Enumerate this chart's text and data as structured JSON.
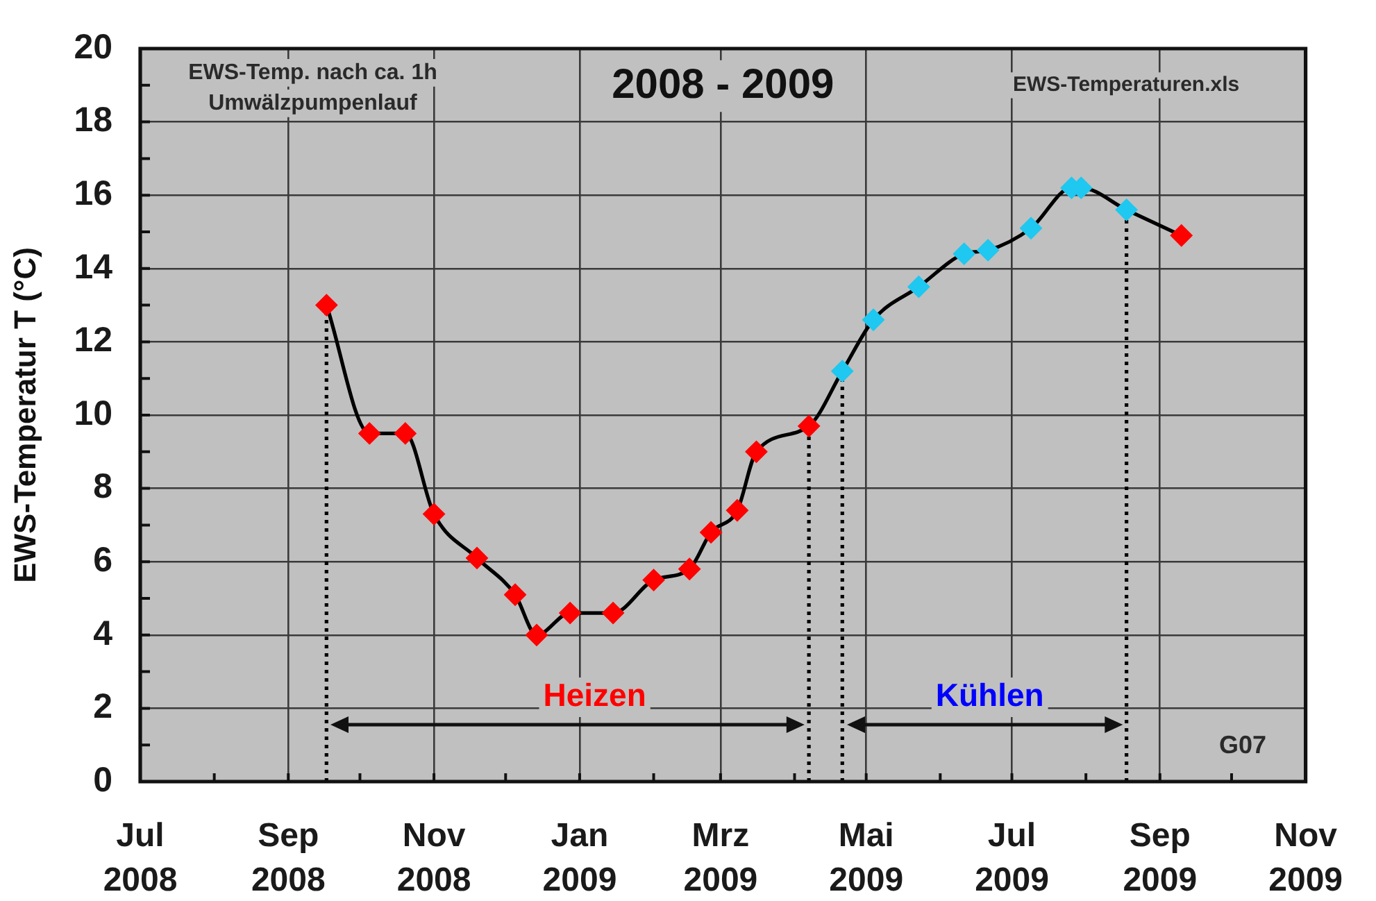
{
  "chart_data": {
    "type": "line",
    "title": "2008 - 2009",
    "ylabel": "EWS-Temperatur T (°C)",
    "annotations": [
      "EWS-Temp. nach ca. 1h\nUmwälzpumpenlauf",
      "EWS-Temperaturen.xls",
      "G07",
      "Heizen",
      "Kühlen"
    ],
    "x": [
      "2008-09-17",
      "2008-10-05",
      "2008-10-20",
      "2008-11-01",
      "2008-11-19",
      "2008-12-05",
      "2008-12-14",
      "2008-12-28",
      "2009-01-15",
      "2009-02-01",
      "2009-02-16",
      "2009-02-25",
      "2009-03-08",
      "2009-03-16",
      "2009-04-07",
      "2009-04-21",
      "2009-05-04",
      "2009-05-23",
      "2009-06-11",
      "2009-06-21",
      "2009-07-09",
      "2009-07-26",
      "2009-07-30",
      "2009-08-18",
      "2009-09-10"
    ],
    "series": [
      {
        "color": "#000000",
        "colors": [
          "#ff0000",
          "#ff0000",
          "#ff0000",
          "#ff0000",
          "#ff0000",
          "#ff0000",
          "#ff0000",
          "#ff0000",
          "#ff0000",
          "#ff0000",
          "#ff0000",
          "#ff0000",
          "#ff0000",
          "#ff0000",
          "#ff0000",
          "#1ec8f0",
          "#1ec8f0",
          "#1ec8f0",
          "#1ec8f0",
          "#1ec8f0",
          "#1ec8f0",
          "#1ec8f0",
          "#1ec8f0",
          "#1ec8f0",
          "#ff0000"
        ],
        "values": [
          13.0,
          9.5,
          9.5,
          7.3,
          6.1,
          5.1,
          4.0,
          4.6,
          4.6,
          5.5,
          5.8,
          6.8,
          7.4,
          9.0,
          9.7,
          11.2,
          12.6,
          13.5,
          14.4,
          14.5,
          15.1,
          16.2,
          16.2,
          15.6,
          14.9
        ]
      }
    ],
    "xlim": [
      "2008-07",
      "2009-11"
    ],
    "xticks": [
      {
        "value": "2008-07",
        "label": "Jul\n2008"
      },
      {
        "value": "2008-08",
        "label": null
      },
      {
        "value": "2008-09",
        "label": "Sep\n2008"
      },
      {
        "value": "2008-10",
        "label": null
      },
      {
        "value": "2008-11",
        "label": "Nov\n2008"
      },
      {
        "value": "2008-12",
        "label": null
      },
      {
        "value": "2009-01",
        "label": "Jan\n2009"
      },
      {
        "value": "2009-02",
        "label": null
      },
      {
        "value": "2009-03",
        "label": "Mrz\n2009"
      },
      {
        "value": "2009-04",
        "label": null
      },
      {
        "value": "2009-05",
        "label": "Mai\n2009"
      },
      {
        "value": "2009-06",
        "label": null
      },
      {
        "value": "2009-07",
        "label": "Jul\n2009"
      },
      {
        "value": "2009-08",
        "label": null
      },
      {
        "value": "2009-09",
        "label": "Sep\n2009"
      },
      {
        "value": "2009-10",
        "label": null
      },
      {
        "value": "2009-11",
        "label": "Nov\n2009"
      }
    ],
    "ylim": [
      0,
      20
    ],
    "yticks": [
      0,
      {
        "value": 1,
        "label": null
      },
      2,
      {
        "value": 3,
        "label": null
      },
      4,
      {
        "value": 5,
        "label": null
      },
      6,
      {
        "value": 7,
        "label": null
      },
      8,
      {
        "value": 9,
        "label": null
      },
      10,
      {
        "value": 11,
        "label": null
      },
      12,
      {
        "value": 13,
        "label": null
      },
      14,
      {
        "value": 15,
        "label": null
      },
      16,
      {
        "value": 17,
        "label": null
      },
      18,
      {
        "value": 19,
        "label": null
      },
      20
    ],
    "grid": true,
    "marker": "diamond",
    "ref_lines": [
      {
        "axis": "x",
        "value": "2008-09-17",
        "line_style": "dotted",
        "color": "#000000"
      },
      {
        "axis": "x",
        "value": "2009-04-07",
        "line_style": "dotted",
        "color": "#000000"
      },
      {
        "axis": "x",
        "value": "2009-04-21",
        "line_style": "dotted",
        "color": "#000000"
      },
      {
        "axis": "x",
        "value": "2009-08-18",
        "line_style": "dotted",
        "color": "#000000"
      }
    ]
  }
}
